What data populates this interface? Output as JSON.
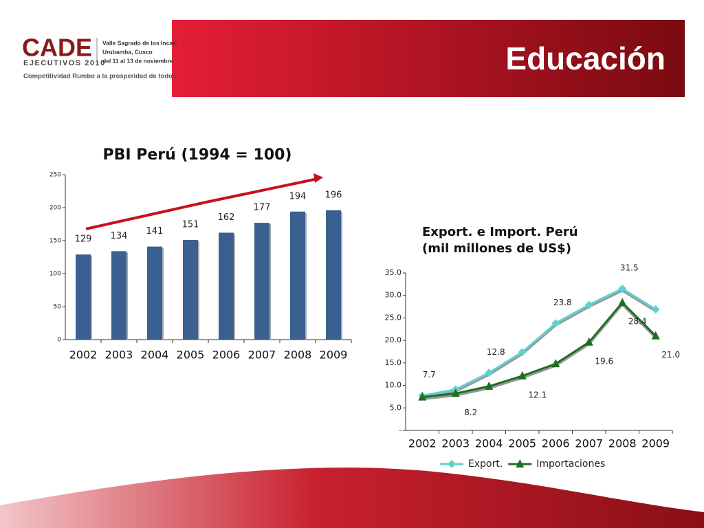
{
  "header": {
    "title": "Educación",
    "logo": "CADE",
    "logo_sub": "EJECUTIVOS 2010",
    "event_lines": [
      "Valle Sagrado de los Incas,",
      "Urubamba, Cusco",
      "del 11 al 13 de noviembre"
    ],
    "tagline": "Competitividad Rumbo a la prosperidad de todos"
  },
  "chart_data": [
    {
      "type": "bar",
      "title": "PBI Perú (1994 = 100)",
      "categories": [
        "2002",
        "2003",
        "2004",
        "2005",
        "2006",
        "2007",
        "2008",
        "2009"
      ],
      "values": [
        129,
        134,
        141,
        151,
        162,
        177,
        194,
        196
      ],
      "color": "#3a5f91",
      "ylim": [
        0,
        250
      ],
      "yticks": [
        0,
        50,
        100,
        150,
        200,
        250
      ]
    },
    {
      "type": "line",
      "title": [
        "Export. e Import. Perú",
        "(mil millones de US$)"
      ],
      "categories": [
        "2002",
        "2003",
        "2004",
        "2005",
        "2006",
        "2007",
        "2008",
        "2009"
      ],
      "series": [
        {
          "name": "Export.",
          "color": "#5fd0d0",
          "marker": "diamond",
          "values": [
            7.7,
            9.1,
            12.8,
            17.4,
            23.8,
            27.9,
            31.5,
            26.9
          ],
          "value_labels": [
            "7.7",
            null,
            "12.8",
            null,
            "23.8",
            null,
            "31.5",
            null
          ]
        },
        {
          "name": "Importaciones",
          "color": "#1f6e1f",
          "marker": "triangle",
          "values": [
            7.4,
            8.2,
            9.8,
            12.1,
            14.8,
            19.6,
            28.4,
            21.0
          ],
          "value_labels": [
            null,
            "8.2",
            null,
            "12.1",
            null,
            "19.6",
            "28.4",
            "21.0"
          ]
        }
      ],
      "ylim": [
        0,
        35
      ],
      "yticks": [
        {
          "value": 0,
          "label": "-"
        },
        {
          "value": 5,
          "label": "5.0"
        },
        {
          "value": 10,
          "label": "10.0"
        },
        {
          "value": 15,
          "label": "15.0"
        },
        {
          "value": 20,
          "label": "20.0"
        },
        {
          "value": 25,
          "label": "25.0"
        },
        {
          "value": 30,
          "label": "30.0"
        },
        {
          "value": 35,
          "label": "35.0"
        }
      ],
      "legend": "bottom"
    }
  ]
}
